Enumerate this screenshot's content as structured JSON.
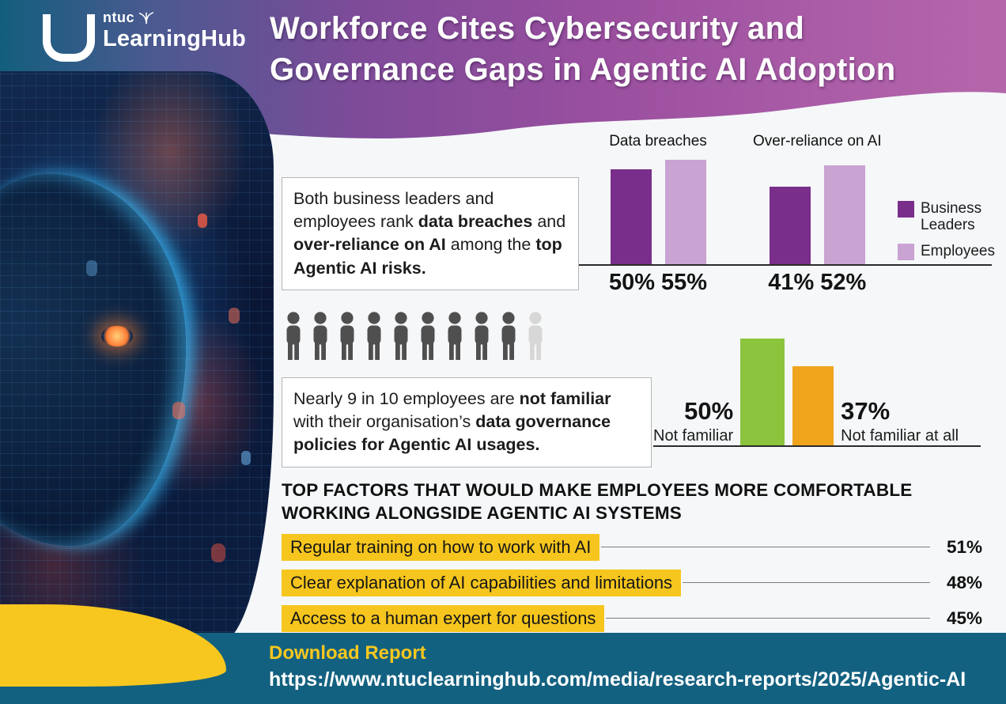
{
  "header": {
    "logo": {
      "brand_top": "ntuc",
      "brand_bottom": "LearningHub"
    },
    "title_line1": "Workforce Cites Cybersecurity and",
    "title_line2": "Governance Gaps in Agentic AI Adoption"
  },
  "risks": {
    "callout_segments": [
      {
        "text": "Both business leaders and employees rank ",
        "bold": false
      },
      {
        "text": "data breaches",
        "bold": true
      },
      {
        "text": " and ",
        "bold": false
      },
      {
        "text": "over-reliance on AI",
        "bold": true
      },
      {
        "text": " among the ",
        "bold": false
      },
      {
        "text": "top Agentic AI risks.",
        "bold": true
      }
    ]
  },
  "familiarity": {
    "callout_segments": [
      {
        "text": "Nearly 9 in 10 employees are ",
        "bold": false
      },
      {
        "text": "not familiar",
        "bold": true
      },
      {
        "text": " with their organisation’s ",
        "bold": false
      },
      {
        "text": "data governance policies for Agentic AI usages.",
        "bold": true
      }
    ],
    "people": {
      "total": 10,
      "dark": 9,
      "dark_color": "#4f4f4f",
      "light_color": "#d7d7d7"
    }
  },
  "factors": {
    "heading_line1": "TOP FACTORS THAT WOULD MAKE EMPLOYEES MORE COMFORTABLE",
    "heading_line2": "WORKING ALONGSIDE AGENTIC AI SYSTEMS",
    "items": [
      {
        "label": "Regular training on how to work with AI",
        "value": "51%"
      },
      {
        "label": "Clear explanation of AI capabilities and limitations",
        "value": "48%"
      },
      {
        "label": "Access to a human expert for questions",
        "value": "45%"
      }
    ]
  },
  "footer": {
    "download_label": "Download Report",
    "url": "https://www.ntuclearninghub.com/media/research-reports/2025/Agentic-AI"
  },
  "colors": {
    "business_leaders": "#7a2e8c",
    "employees": "#c9a3d1",
    "not_familiar_green": "#8cc43e",
    "not_familiar_at_all_orange": "#f0a51d",
    "highlight_yellow": "#f6c61e",
    "footer_teal": "#136180"
  },
  "chart_data": [
    {
      "type": "bar",
      "title": "Top Agentic AI risks ranked by business leaders and employees",
      "categories": [
        "Data breaches",
        "Over-reliance on AI"
      ],
      "series": [
        {
          "name": "Business Leaders",
          "values": [
            50,
            41
          ],
          "color": "#7a2e8c"
        },
        {
          "name": "Employees",
          "values": [
            55,
            52
          ],
          "color": "#c9a3d1"
        }
      ],
      "value_labels": [
        [
          "50%",
          "55%"
        ],
        [
          "41%",
          "52%"
        ]
      ],
      "legend_position": "right",
      "ylim": [
        0,
        60
      ],
      "grid": false
    },
    {
      "type": "bar",
      "title": "Employee familiarity with organisation's data governance policies for Agentic AI",
      "categories": [
        "Not familiar",
        "Not familiar at all"
      ],
      "values": [
        50,
        37
      ],
      "value_labels": [
        "50%",
        "37%"
      ],
      "colors": [
        "#8cc43e",
        "#f0a51d"
      ],
      "ylim": [
        0,
        60
      ],
      "grid": false
    },
    {
      "type": "bar",
      "orientation": "horizontal",
      "title": "Top factors that would make employees more comfortable working alongside Agentic AI systems",
      "categories": [
        "Regular training on how to work with AI",
        "Clear explanation of AI capabilities and limitations",
        "Access to a human expert for questions"
      ],
      "values": [
        51,
        48,
        45
      ],
      "value_labels": [
        "51%",
        "48%",
        "45%"
      ]
    }
  ]
}
